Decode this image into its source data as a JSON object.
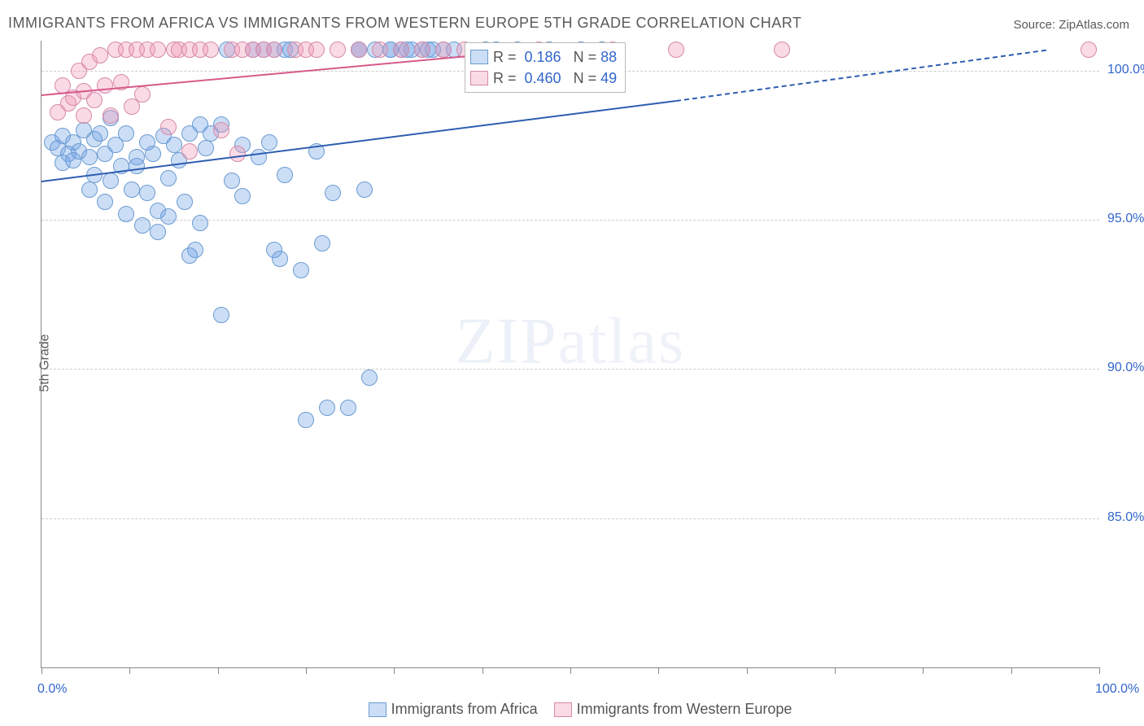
{
  "title": "IMMIGRANTS FROM AFRICA VS IMMIGRANTS FROM WESTERN EUROPE 5TH GRADE CORRELATION CHART",
  "source": "Source: ZipAtlas.com",
  "ylabel": "5th Grade",
  "watermark_a": "ZIP",
  "watermark_b": "atlas",
  "chart": {
    "type": "scatter",
    "xlim": [
      0,
      100
    ],
    "ylim": [
      80,
      101
    ],
    "x_ticks": [
      0,
      8.33,
      16.66,
      25,
      33.33,
      41.66,
      50,
      58.33,
      66.66,
      75,
      83.33,
      91.66,
      100
    ],
    "x_tick_labels": {
      "0": "0.0%",
      "100": "100.0%"
    },
    "y_grid": [
      85,
      90,
      95,
      100
    ],
    "y_tick_labels": {
      "85": "85.0%",
      "90": "90.0%",
      "95": "95.0%",
      "100": "100.0%"
    },
    "colors": {
      "series1_fill": "rgba(110,160,230,0.35)",
      "series1_stroke": "#6b9bd1",
      "series2_fill": "rgba(240,150,180,0.35)",
      "series2_stroke": "#d68aa6",
      "trend1": "#2e5db0",
      "trend2": "#d65a8a",
      "grid": "#cccccc",
      "axis_text": "#3366cc",
      "title_text": "#5a5a5a"
    },
    "marker_radius": 10,
    "stats_box": {
      "rows": [
        {
          "swatch": "blue",
          "R": "0.186",
          "N": "88"
        },
        {
          "swatch": "pink",
          "R": "0.460",
          "N": "49"
        }
      ]
    },
    "bottom_legend": [
      {
        "swatch": "blue",
        "label": "Immigrants from Africa"
      },
      {
        "swatch": "pink",
        "label": "Immigrants from Western Europe"
      }
    ],
    "trend_lines": [
      {
        "series": "blue",
        "x1": 0,
        "y1": 96.3,
        "x2": 60,
        "y2": 99.0,
        "solid": true
      },
      {
        "series": "blue",
        "x1": 60,
        "y1": 99.0,
        "x2": 95,
        "y2": 100.7,
        "solid": false
      },
      {
        "series": "pink",
        "x1": 0,
        "y1": 99.2,
        "x2": 40,
        "y2": 100.5,
        "solid": true
      }
    ],
    "series1_points": [
      [
        1,
        97.6
      ],
      [
        1.5,
        97.4
      ],
      [
        2,
        97.8
      ],
      [
        2.5,
        97.2
      ],
      [
        2,
        96.9
      ],
      [
        3,
        97.6
      ],
      [
        3.5,
        97.3
      ],
      [
        3,
        97.0
      ],
      [
        4,
        98.0
      ],
      [
        4.5,
        97.1
      ],
      [
        5,
        97.7
      ],
      [
        5,
        96.5
      ],
      [
        5.5,
        97.9
      ],
      [
        6,
        97.2
      ],
      [
        6.5,
        96.3
      ],
      [
        6,
        95.6
      ],
      [
        7,
        97.5
      ],
      [
        7.5,
        96.8
      ],
      [
        8,
        97.9
      ],
      [
        8,
        95.2
      ],
      [
        8.5,
        96.0
      ],
      [
        9,
        97.1
      ],
      [
        9.5,
        94.8
      ],
      [
        10,
        97.6
      ],
      [
        10,
        95.9
      ],
      [
        10.5,
        97.2
      ],
      [
        11,
        94.6
      ],
      [
        11.5,
        97.8
      ],
      [
        12,
        96.4
      ],
      [
        12,
        95.1
      ],
      [
        12.5,
        97.5
      ],
      [
        13,
        97.0
      ],
      [
        14,
        97.9
      ],
      [
        14.5,
        94.0
      ],
      [
        14,
        93.8
      ],
      [
        15,
        98.2
      ],
      [
        15.5,
        97.4
      ],
      [
        16,
        97.9
      ],
      [
        17,
        98.2
      ],
      [
        17,
        91.8
      ],
      [
        17.5,
        100.7
      ],
      [
        18,
        96.3
      ],
      [
        19,
        97.5
      ],
      [
        19,
        95.8
      ],
      [
        20,
        100.7
      ],
      [
        20.5,
        97.1
      ],
      [
        21,
        100.7
      ],
      [
        21.5,
        97.6
      ],
      [
        22,
        100.7
      ],
      [
        22,
        94.0
      ],
      [
        22.5,
        93.7
      ],
      [
        23,
        100.7
      ],
      [
        23,
        96.5
      ],
      [
        23.5,
        100.7
      ],
      [
        24.5,
        93.3
      ],
      [
        25,
        88.3
      ],
      [
        26,
        97.3
      ],
      [
        26.5,
        94.2
      ],
      [
        27,
        88.7
      ],
      [
        29,
        88.7
      ],
      [
        30,
        100.7
      ],
      [
        30.5,
        96.0
      ],
      [
        31.5,
        100.7
      ],
      [
        33,
        100.7
      ],
      [
        33,
        100.7
      ],
      [
        34.5,
        100.7
      ],
      [
        35,
        100.7
      ],
      [
        36,
        100.7
      ],
      [
        36.5,
        100.7
      ],
      [
        37,
        100.7
      ],
      [
        38,
        100.7
      ],
      [
        39,
        100.7
      ],
      [
        31,
        89.7
      ],
      [
        34,
        100.7
      ],
      [
        27.5,
        95.9
      ],
      [
        30,
        100.7
      ],
      [
        42,
        100.7
      ],
      [
        43,
        100.7
      ],
      [
        51,
        100.7
      ],
      [
        53,
        100.7
      ],
      [
        45,
        100.7
      ],
      [
        48,
        100.7
      ],
      [
        4.5,
        96.0
      ],
      [
        6.5,
        98.4
      ],
      [
        9,
        96.8
      ],
      [
        11,
        95.3
      ],
      [
        13.5,
        95.6
      ],
      [
        15,
        94.9
      ]
    ],
    "series2_points": [
      [
        1.5,
        98.6
      ],
      [
        2,
        99.5
      ],
      [
        2.5,
        98.9
      ],
      [
        3,
        99.1
      ],
      [
        3.5,
        100.0
      ],
      [
        4,
        99.3
      ],
      [
        4.5,
        100.3
      ],
      [
        5,
        99.0
      ],
      [
        5.5,
        100.5
      ],
      [
        6,
        99.5
      ],
      [
        6.5,
        98.5
      ],
      [
        7,
        100.7
      ],
      [
        7.5,
        99.6
      ],
      [
        8,
        100.7
      ],
      [
        8.5,
        98.8
      ],
      [
        9,
        100.7
      ],
      [
        9.5,
        99.2
      ],
      [
        10,
        100.7
      ],
      [
        11,
        100.7
      ],
      [
        12,
        98.1
      ],
      [
        12.5,
        100.7
      ],
      [
        13,
        100.7
      ],
      [
        14,
        100.7
      ],
      [
        14,
        97.3
      ],
      [
        15,
        100.7
      ],
      [
        16,
        100.7
      ],
      [
        17,
        98.0
      ],
      [
        18,
        100.7
      ],
      [
        18.5,
        97.2
      ],
      [
        19,
        100.7
      ],
      [
        20,
        100.7
      ],
      [
        21,
        100.7
      ],
      [
        22,
        100.7
      ],
      [
        24,
        100.7
      ],
      [
        25,
        100.7
      ],
      [
        26,
        100.7
      ],
      [
        28,
        100.7
      ],
      [
        30,
        100.7
      ],
      [
        32,
        100.7
      ],
      [
        34,
        100.7
      ],
      [
        36,
        100.7
      ],
      [
        38,
        100.7
      ],
      [
        40,
        100.7
      ],
      [
        47,
        100.7
      ],
      [
        54,
        100.7
      ],
      [
        60,
        100.7
      ],
      [
        70,
        100.7
      ],
      [
        99,
        100.7
      ],
      [
        4,
        98.5
      ]
    ]
  }
}
